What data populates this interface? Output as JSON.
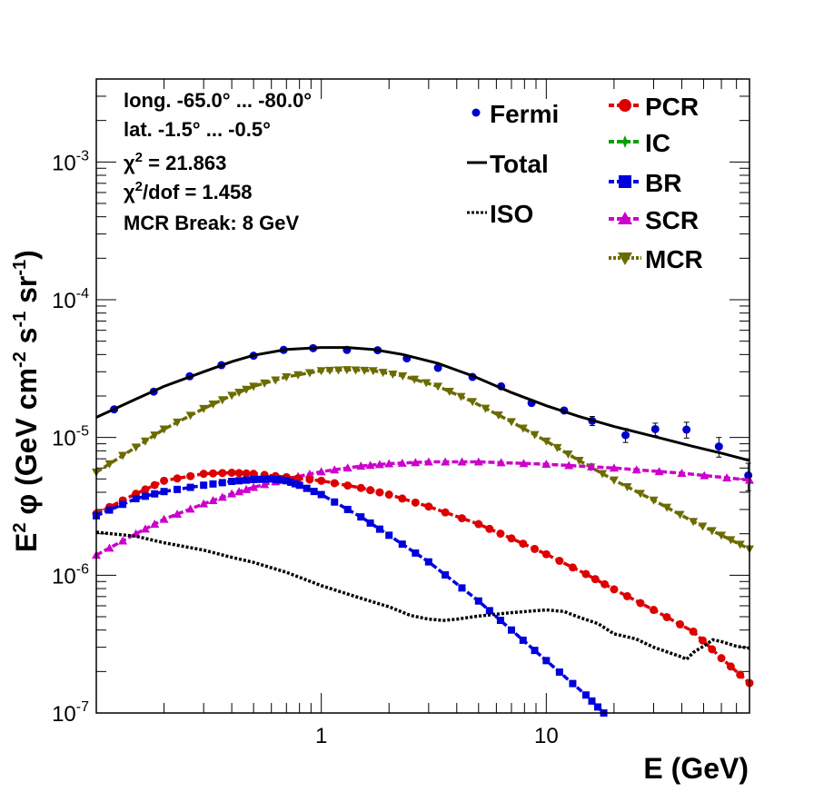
{
  "chart_data": {
    "type": "line",
    "xscale": "log",
    "yscale": "log",
    "xlim": [
      0.1,
      80
    ],
    "ylim": [
      1e-07,
      0.004
    ],
    "xlabel": "E (GeV)",
    "ylabel": {
      "base": "E",
      "exp": "2",
      "mid": " φ (GeV cm",
      "cm_exp": "-2",
      "s": " s",
      "s_exp": "-1",
      "sr": " sr",
      "sr_exp": "-1",
      "end": ")"
    },
    "x_ticklabels": [
      {
        "value": 1,
        "text": "1"
      },
      {
        "value": 10,
        "text": "10"
      }
    ],
    "y_ticklabels": [
      {
        "value": 1e-07,
        "base": "10",
        "exp": "-7"
      },
      {
        "value": 1e-06,
        "base": "10",
        "exp": "-6"
      },
      {
        "value": 1e-05,
        "base": "10",
        "exp": "-5"
      },
      {
        "value": 0.0001,
        "base": "10",
        "exp": "-4"
      },
      {
        "value": 0.001,
        "base": "10",
        "exp": "-3"
      }
    ],
    "annotations": {
      "long": "long. -65.0° ... -80.0°",
      "lat": "lat. -1.5° ... -0.5°",
      "chi2_sym": "χ",
      "chi2_sup": "2",
      "chi2_val": " = 21.863",
      "chi2dof_val": "/dof = 1.458",
      "mcr_break": "MCR Break:  8 GeV"
    },
    "legend": [
      {
        "name": "Fermi",
        "color": "#0000cc",
        "marker": "dot"
      },
      {
        "name": "Total",
        "color": "#000000",
        "marker": "line"
      },
      {
        "name": "ISO",
        "color": "#000000",
        "marker": "dotted"
      },
      {
        "name": "PCR",
        "color": "#dd0000",
        "marker": "circle"
      },
      {
        "name": "IC",
        "color": "#00a000",
        "marker": "star"
      },
      {
        "name": "BR",
        "color": "#0000dd",
        "marker": "square"
      },
      {
        "name": "SCR",
        "color": "#cc00cc",
        "marker": "triangle-up"
      },
      {
        "name": "MCR",
        "color": "#6b6b00",
        "marker": "triangle-down"
      }
    ],
    "series": [
      {
        "name": "Fermi",
        "color": "#0000cc",
        "style": "points",
        "x": [
          0.12,
          0.18,
          0.26,
          0.36,
          0.5,
          0.68,
          0.92,
          1.3,
          1.78,
          2.4,
          3.3,
          4.7,
          6.3,
          8.6,
          12,
          16,
          22.5,
          30.5,
          42,
          58.5,
          79
        ],
        "y": [
          1.6e-05,
          2.15e-05,
          2.78e-05,
          3.35e-05,
          3.92e-05,
          4.32e-05,
          4.45e-05,
          4.32e-05,
          4.3e-05,
          3.75e-05,
          3.2e-05,
          2.75e-05,
          2.35e-05,
          1.78e-05,
          1.57e-05,
          1.32e-05,
          1.04e-05,
          1.15e-05,
          1.14e-05,
          8.6e-06,
          5.3e-06
        ],
        "err": [
          0,
          0,
          0,
          0,
          0,
          0,
          0,
          0,
          0,
          0,
          0,
          0,
          0,
          0,
          0,
          1e-06,
          1.2e-06,
          1.2e-06,
          1.5e-06,
          1.4e-06,
          1.2e-06
        ]
      },
      {
        "name": "Total",
        "color": "#000000",
        "style": "solid",
        "x": [
          0.1,
          0.15,
          0.2,
          0.3,
          0.4,
          0.5,
          0.7,
          1.0,
          1.3,
          1.7,
          2.3,
          3.3,
          4.7,
          7.0,
          10,
          14,
          20,
          30,
          45,
          60,
          80
        ],
        "y": [
          1.4e-05,
          1.9e-05,
          2.35e-05,
          3e-05,
          3.55e-05,
          3.95e-05,
          4.35e-05,
          4.5e-05,
          4.5e-05,
          4.35e-05,
          4e-05,
          3.45e-05,
          2.8e-05,
          2.12e-05,
          1.7e-05,
          1.42e-05,
          1.2e-05,
          1.02e-05,
          8.6e-06,
          7.7e-06,
          6.8e-06
        ]
      },
      {
        "name": "MCR",
        "color": "#6b6b00",
        "style": "dashed",
        "marker": "triangle-down",
        "x": [
          0.1,
          0.15,
          0.2,
          0.3,
          0.4,
          0.5,
          0.7,
          1.0,
          1.3,
          1.7,
          2.3,
          3.3,
          4.7,
          7.0,
          10,
          14,
          20,
          30,
          45,
          60,
          80
        ],
        "y": [
          5.6e-06,
          8.5e-06,
          1.15e-05,
          1.62e-05,
          2.02e-05,
          2.35e-05,
          2.75e-05,
          3.05e-05,
          3.1e-05,
          3.05e-05,
          2.8e-05,
          2.35e-05,
          1.82e-05,
          1.3e-05,
          9.4e-06,
          6.8e-06,
          4.9e-06,
          3.5e-06,
          2.45e-06,
          1.95e-06,
          1.55e-06
        ]
      },
      {
        "name": "SCR",
        "color": "#cc00cc",
        "style": "dashed",
        "marker": "triangle-up",
        "x": [
          0.1,
          0.15,
          0.2,
          0.3,
          0.4,
          0.5,
          0.7,
          1.0,
          1.5,
          2.0,
          3.0,
          5.0,
          10,
          20,
          40,
          80
        ],
        "y": [
          1.4e-06,
          2e-06,
          2.55e-06,
          3.3e-06,
          3.9e-06,
          4.35e-06,
          5e-06,
          5.65e-06,
          6.2e-06,
          6.45e-06,
          6.65e-06,
          6.65e-06,
          6.4e-06,
          6e-06,
          5.5e-06,
          4.9e-06
        ]
      },
      {
        "name": "PCR",
        "color": "#dd0000",
        "style": "dashed",
        "marker": "circle",
        "x": [
          0.1,
          0.15,
          0.2,
          0.3,
          0.4,
          0.5,
          0.7,
          1.0,
          1.5,
          2.0,
          3.0,
          5.0,
          7.0,
          10,
          15,
          20,
          30,
          45,
          60,
          80
        ],
        "y": [
          2.8e-06,
          3.9e-06,
          4.85e-06,
          5.45e-06,
          5.55e-06,
          5.45e-06,
          5.15e-06,
          4.85e-06,
          4.3e-06,
          3.85e-06,
          3.15e-06,
          2.35e-06,
          1.85e-06,
          1.42e-06,
          1.02e-06,
          7.9e-07,
          5.6e-07,
          3.9e-07,
          2.5e-07,
          1.65e-07
        ]
      },
      {
        "name": "BR",
        "color": "#0000dd",
        "style": "dashed",
        "marker": "square",
        "x": [
          0.1,
          0.15,
          0.2,
          0.3,
          0.4,
          0.5,
          0.6,
          0.7,
          0.8,
          1.0,
          1.5,
          2.0,
          3.0,
          5.0,
          7.0,
          10,
          15,
          18
        ],
        "y": [
          2.7e-06,
          3.6e-06,
          4.05e-06,
          4.5e-06,
          4.8e-06,
          4.95e-06,
          5e-06,
          4.85e-06,
          4.5e-06,
          3.85e-06,
          2.65e-06,
          1.95e-06,
          1.25e-06,
          6.5e-07,
          4e-07,
          2.4e-07,
          1.35e-07,
          1e-07
        ]
      },
      {
        "name": "ISO",
        "color": "#000000",
        "style": "dotted",
        "x": [
          0.1,
          0.15,
          0.2,
          0.3,
          0.4,
          0.5,
          0.7,
          1.0,
          1.5,
          2.0,
          2.5,
          3.0,
          3.5,
          4.0,
          5.0,
          7.0,
          10,
          12,
          14,
          17,
          20,
          25,
          30,
          35,
          40,
          42,
          45,
          50,
          55,
          60,
          70,
          80
        ],
        "y": [
          2.05e-06,
          1.92e-06,
          1.72e-06,
          1.52e-06,
          1.35e-06,
          1.24e-06,
          1.05e-06,
          8.4e-07,
          6.8e-07,
          5.9e-07,
          5.1e-07,
          4.8e-07,
          4.7e-07,
          4.8e-07,
          5.05e-07,
          5.35e-07,
          5.6e-07,
          5.45e-07,
          4.95e-07,
          4.45e-07,
          3.75e-07,
          3.45e-07,
          3e-07,
          2.75e-07,
          2.55e-07,
          2.45e-07,
          2.75e-07,
          3.05e-07,
          3.4e-07,
          3.3e-07,
          3.05e-07,
          2.95e-07
        ]
      }
    ]
  }
}
